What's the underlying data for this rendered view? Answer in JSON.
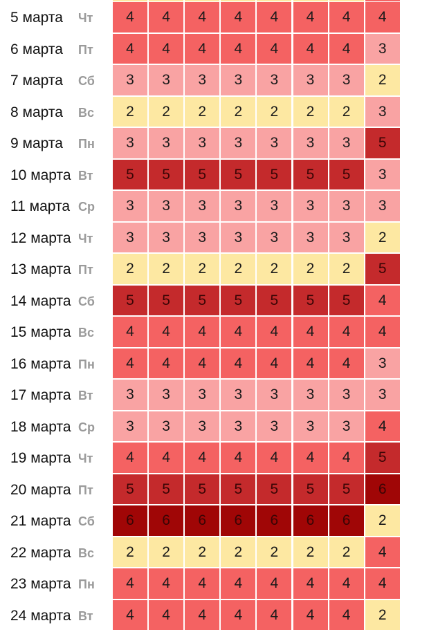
{
  "level_colors": {
    "2": "#fde8a2",
    "3": "#f9a3a3",
    "4": "#f46262",
    "5": "#c42a2c",
    "6": "#a00606"
  },
  "rows": [
    {
      "date": "5 марта",
      "weekday": "Чт",
      "values": [
        "4",
        "4",
        "4",
        "4",
        "4",
        "4",
        "4",
        "4"
      ]
    },
    {
      "date": "6 марта",
      "weekday": "Пт",
      "values": [
        "4",
        "4",
        "4",
        "4",
        "4",
        "4",
        "4",
        "3"
      ]
    },
    {
      "date": "7 марта",
      "weekday": "Сб",
      "values": [
        "3",
        "3",
        "3",
        "3",
        "3",
        "3",
        "3",
        "2"
      ]
    },
    {
      "date": "8 марта",
      "weekday": "Вс",
      "values": [
        "2",
        "2",
        "2",
        "2",
        "2",
        "2",
        "2",
        "3"
      ]
    },
    {
      "date": "9 марта",
      "weekday": "Пн",
      "values": [
        "3",
        "3",
        "3",
        "3",
        "3",
        "3",
        "3",
        "5"
      ]
    },
    {
      "date": "10 марта",
      "weekday": "Вт",
      "values": [
        "5",
        "5",
        "5",
        "5",
        "5",
        "5",
        "5",
        "3"
      ]
    },
    {
      "date": "11 марта",
      "weekday": "Ср",
      "values": [
        "3",
        "3",
        "3",
        "3",
        "3",
        "3",
        "3",
        "3"
      ]
    },
    {
      "date": "12 марта",
      "weekday": "Чт",
      "values": [
        "3",
        "3",
        "3",
        "3",
        "3",
        "3",
        "3",
        "2"
      ]
    },
    {
      "date": "13 марта",
      "weekday": "Пт",
      "values": [
        "2",
        "2",
        "2",
        "2",
        "2",
        "2",
        "2",
        "5"
      ]
    },
    {
      "date": "14 марта",
      "weekday": "Сб",
      "values": [
        "5",
        "5",
        "5",
        "5",
        "5",
        "5",
        "5",
        "4"
      ]
    },
    {
      "date": "15 марта",
      "weekday": "Вс",
      "values": [
        "4",
        "4",
        "4",
        "4",
        "4",
        "4",
        "4",
        "4"
      ]
    },
    {
      "date": "16 марта",
      "weekday": "Пн",
      "values": [
        "4",
        "4",
        "4",
        "4",
        "4",
        "4",
        "4",
        "3"
      ]
    },
    {
      "date": "17 марта",
      "weekday": "Вт",
      "values": [
        "3",
        "3",
        "3",
        "3",
        "3",
        "3",
        "3",
        "3"
      ]
    },
    {
      "date": "18 марта",
      "weekday": "Ср",
      "values": [
        "3",
        "3",
        "3",
        "3",
        "3",
        "3",
        "3",
        "4"
      ]
    },
    {
      "date": "19 марта",
      "weekday": "Чт",
      "values": [
        "4",
        "4",
        "4",
        "4",
        "4",
        "4",
        "4",
        "5"
      ]
    },
    {
      "date": "20 марта",
      "weekday": "Пт",
      "values": [
        "5",
        "5",
        "5",
        "5",
        "5",
        "5",
        "5",
        "6"
      ]
    },
    {
      "date": "21 марта",
      "weekday": "Сб",
      "values": [
        "6",
        "6",
        "6",
        "6",
        "6",
        "6",
        "6",
        "2"
      ]
    },
    {
      "date": "22 марта",
      "weekday": "Вс",
      "values": [
        "2",
        "2",
        "2",
        "2",
        "2",
        "2",
        "2",
        "4"
      ]
    },
    {
      "date": "23 марта",
      "weekday": "Пн",
      "values": [
        "4",
        "4",
        "4",
        "4",
        "4",
        "4",
        "4",
        "4"
      ]
    },
    {
      "date": "24 марта",
      "weekday": "Вт",
      "values": [
        "4",
        "4",
        "4",
        "4",
        "4",
        "4",
        "4",
        "2"
      ]
    }
  ]
}
